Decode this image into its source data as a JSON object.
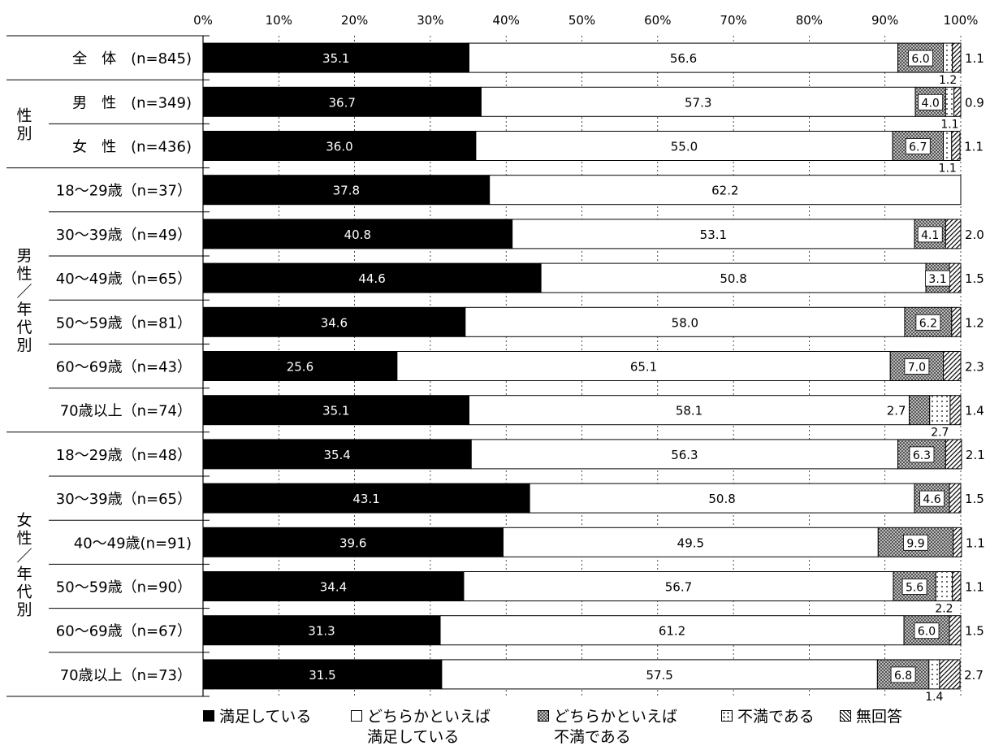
{
  "chart_data": {
    "type": "bar",
    "orientation": "horizontal",
    "stacked": true,
    "xlim": [
      0,
      100
    ],
    "x_ticks": [
      "0%",
      "10%",
      "20%",
      "30%",
      "40%",
      "50%",
      "60%",
      "70%",
      "80%",
      "90%",
      "100%"
    ],
    "grid": true,
    "legend_position": "bottom",
    "groups": [
      {
        "label": "",
        "start": 0,
        "end": 0
      },
      {
        "label": "性別",
        "start": 1,
        "end": 2
      },
      {
        "label": "男性／年代別",
        "start": 3,
        "end": 8
      },
      {
        "label": "女性／年代別",
        "start": 9,
        "end": 14
      }
    ],
    "categories": [
      "全　体　(n=845)",
      "男　性　(n=349)",
      "女　性　(n=436)",
      "18～29歳（n=37）",
      "30～39歳（n=49）",
      "40～49歳（n=65）",
      "50～59歳（n=81）",
      "60～69歳（n=43）",
      "70歳以上（n=74）",
      "18～29歳（n=48）",
      "30～39歳（n=65）",
      " 40～49歳(n=91)",
      "50～59歳（n=90）",
      "60～69歳（n=67）",
      "70歳以上（n=73）"
    ],
    "series": [
      {
        "name": "満足している",
        "color": "#000000",
        "pattern": "solid",
        "values": [
          35.1,
          36.7,
          36.0,
          37.8,
          40.8,
          44.6,
          34.6,
          25.6,
          35.1,
          35.4,
          43.1,
          39.6,
          34.4,
          31.3,
          31.5
        ]
      },
      {
        "name": "どちらかといえば\n満足している",
        "color": "#ffffff",
        "pattern": "white",
        "values": [
          56.6,
          57.3,
          55.0,
          62.2,
          53.1,
          50.8,
          58.0,
          65.1,
          58.1,
          56.3,
          50.8,
          49.5,
          56.7,
          61.2,
          57.5
        ]
      },
      {
        "name": "どちらかといえば\n不満である",
        "color": "#9e9e9e",
        "pattern": "checker",
        "values": [
          6.0,
          4.0,
          6.7,
          0,
          4.1,
          3.1,
          6.2,
          7.0,
          2.7,
          6.3,
          4.6,
          9.9,
          5.6,
          6.0,
          6.8
        ]
      },
      {
        "name": "不満である",
        "color": "#ffffff",
        "pattern": "dots",
        "values": [
          1.2,
          1.1,
          1.1,
          0,
          0,
          0,
          0,
          0,
          2.7,
          0,
          0,
          0,
          2.2,
          0,
          1.4
        ]
      },
      {
        "name": "無回答",
        "color": "#ffffff",
        "pattern": "hatch",
        "values": [
          1.1,
          0.9,
          1.1,
          0,
          2.0,
          1.5,
          1.2,
          2.3,
          1.4,
          2.1,
          1.5,
          1.1,
          1.1,
          1.5,
          2.7
        ]
      }
    ],
    "data_labels": {
      "s1": [
        "35.1",
        "36.7",
        "36.0",
        "37.8",
        "40.8",
        "44.6",
        "34.6",
        "25.6",
        "35.1",
        "35.4",
        "43.1",
        "39.6",
        "34.4",
        "31.3",
        "31.5"
      ],
      "s2": [
        "56.6",
        "57.3",
        "55.0",
        "62.2",
        "53.1",
        "50.8",
        "58.0",
        "65.1",
        "58.1",
        "56.3",
        "50.8",
        "49.5",
        "56.7",
        "61.2",
        "57.5"
      ],
      "s3": [
        "6.0",
        "4.0",
        "6.7",
        "",
        "4.1",
        "3.1",
        "6.2",
        "7.0",
        "2.7",
        "6.3",
        "4.6",
        "9.9",
        "5.6",
        "6.0",
        "6.8"
      ],
      "s4": [
        "1.2",
        "1.1",
        "1.1",
        "",
        "",
        "",
        "",
        "",
        "2.7",
        "",
        "",
        "",
        "2.2",
        "",
        "1.4"
      ],
      "s5": [
        "1.1",
        "0.9",
        "1.1",
        "",
        "2.0",
        "1.5",
        "1.2",
        "2.3",
        "1.4",
        "2.1",
        "1.5",
        "1.1",
        "1.1",
        "1.5",
        "2.7"
      ]
    }
  }
}
